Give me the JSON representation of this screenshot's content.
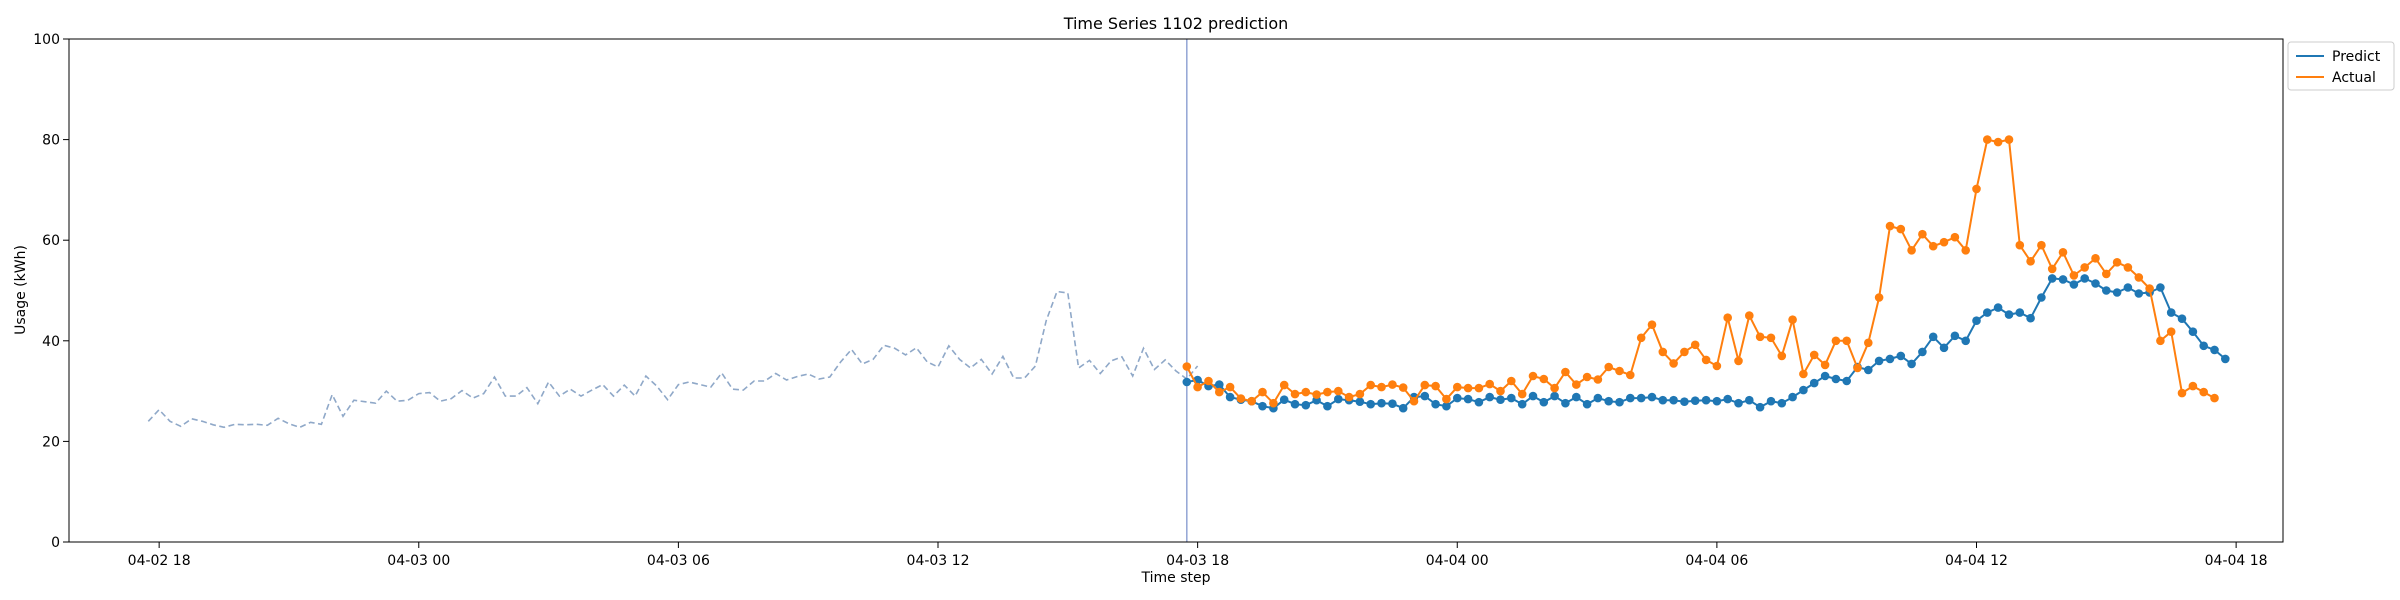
{
  "chart_data": {
    "type": "line",
    "title": "Time Series 1102 prediction",
    "xlabel": "Time step",
    "ylabel": "Usage (kWh)",
    "xlim": [
      "2024-04-02 15:55",
      "2024-04-04 19:05"
    ],
    "ylim": [
      0,
      100
    ],
    "x_ticks": [
      {
        "t": "2024-04-02 18:00",
        "label": "04-02 18"
      },
      {
        "t": "2024-04-03 00:00",
        "label": "04-03 00"
      },
      {
        "t": "2024-04-03 06:00",
        "label": "04-03 06"
      },
      {
        "t": "2024-04-03 12:00",
        "label": "04-03 12"
      },
      {
        "t": "2024-04-03 18:00",
        "label": "04-03 18"
      },
      {
        "t": "2024-04-04 00:00",
        "label": "04-04 00"
      },
      {
        "t": "2024-04-04 06:00",
        "label": "04-04 06"
      },
      {
        "t": "2024-04-04 12:00",
        "label": "04-04 12"
      },
      {
        "t": "2024-04-04 18:00",
        "label": "04-04 18"
      }
    ],
    "y_ticks": [
      0,
      20,
      40,
      60,
      80,
      100
    ],
    "grid": false,
    "legend_position": "outside-top-right",
    "history": {
      "start": "2024-04-02 17:45",
      "step_minutes": 15,
      "style": "dashed",
      "color": "#8fa8c8",
      "values": [
        24.0,
        26.3,
        24.0,
        23.0,
        24.5,
        24.0,
        23.3,
        22.8,
        23.4,
        23.3,
        23.4,
        23.2,
        24.6,
        23.5,
        22.8,
        23.8,
        23.4,
        29.3,
        25.0,
        28.2,
        27.9,
        27.6,
        30.0,
        28.0,
        28.2,
        29.5,
        29.7,
        28.0,
        28.5,
        30.1,
        28.6,
        29.5,
        32.8,
        29.0,
        29.0,
        30.7,
        27.5,
        31.8,
        29.0,
        30.4,
        29.0,
        30.2,
        31.3,
        29.0,
        31.2,
        29.0,
        33.0,
        31.0,
        28.3,
        31.3,
        31.8,
        31.3,
        30.8,
        33.6,
        30.4,
        30.2,
        32.0,
        32.0,
        33.5,
        32.2,
        32.9,
        33.4,
        32.4,
        32.8,
        35.8,
        38.3,
        35.4,
        36.3,
        39.1,
        38.5,
        37.2,
        38.6,
        35.8,
        34.8,
        39.0,
        36.3,
        34.6,
        36.3,
        33.4,
        36.9,
        32.6,
        32.6,
        35.0,
        44.0,
        49.8,
        49.5,
        34.6,
        36.1,
        33.5,
        36.0,
        36.8,
        33.0,
        38.5,
        34.3,
        36.2,
        34.0,
        32.4,
        35.0
      ]
    },
    "vline": {
      "t": "2024-04-03 17:45",
      "color": "#8a9ed1"
    },
    "forecast": {
      "start": "2024-04-03 17:45",
      "step_minutes": 15,
      "series": [
        {
          "name": "Predict",
          "color": "#1f77b4",
          "values": [
            31.8,
            32.2,
            31.0,
            31.3,
            28.8,
            28.3,
            28.0,
            27.0,
            26.6,
            28.3,
            27.4,
            27.2,
            28.2,
            27.0,
            28.4,
            28.2,
            27.9,
            27.4,
            27.6,
            27.5,
            26.6,
            28.8,
            29.0,
            27.4,
            27.0,
            28.6,
            28.4,
            27.8,
            28.8,
            28.3,
            28.6,
            27.4,
            29.0,
            27.8,
            29.0,
            27.6,
            28.8,
            27.4,
            28.6,
            28.0,
            27.8,
            28.6,
            28.6,
            28.8,
            28.2,
            28.2,
            27.9,
            28.1,
            28.2,
            28.0,
            28.4,
            27.6,
            28.2,
            26.8,
            28.0,
            27.6,
            28.8,
            30.2,
            31.6,
            33.0,
            32.4,
            32.0,
            34.8,
            34.2,
            36.0,
            36.4,
            37.0,
            35.4,
            37.8,
            40.8,
            38.6,
            41.0,
            40.0,
            44.0,
            45.6,
            46.6,
            45.2,
            45.6,
            44.5,
            48.6,
            52.4,
            52.2,
            51.2,
            52.4,
            51.4,
            50.0,
            49.6,
            50.6,
            49.4,
            49.6,
            50.6,
            45.6,
            44.4,
            41.8,
            39.0,
            38.2,
            36.4
          ]
        },
        {
          "name": "Actual",
          "color": "#ff7f0e",
          "values": [
            34.9,
            30.8,
            32.0,
            29.8,
            30.8,
            28.5,
            28.0,
            29.8,
            27.6,
            31.2,
            29.4,
            29.8,
            29.3,
            29.8,
            30.0,
            28.8,
            29.4,
            31.2,
            30.8,
            31.3,
            30.7,
            28.0,
            31.2,
            31.0,
            28.4,
            30.8,
            30.6,
            30.6,
            31.4,
            30.0,
            32.0,
            29.4,
            33.0,
            32.4,
            30.6,
            33.8,
            31.3,
            32.8,
            32.3,
            34.8,
            34.0,
            33.2,
            40.6,
            43.2,
            37.8,
            35.5,
            37.8,
            39.2,
            36.2,
            35.0,
            44.6,
            36.0,
            45.0,
            40.8,
            40.6,
            37.0,
            44.2,
            33.4,
            37.2,
            35.2,
            40.0,
            40.0,
            34.6,
            39.6,
            48.6,
            62.8,
            62.2,
            58.0,
            61.2,
            58.8,
            59.6,
            60.6,
            58.0,
            70.2,
            80.0,
            79.5,
            80.0,
            59.0,
            55.8,
            59.0,
            54.3,
            57.6,
            53.0,
            54.6,
            56.4,
            53.3,
            55.6,
            54.6,
            52.6,
            50.4,
            40.0,
            41.8,
            29.6,
            31.0,
            29.8,
            28.6
          ]
        }
      ]
    }
  }
}
